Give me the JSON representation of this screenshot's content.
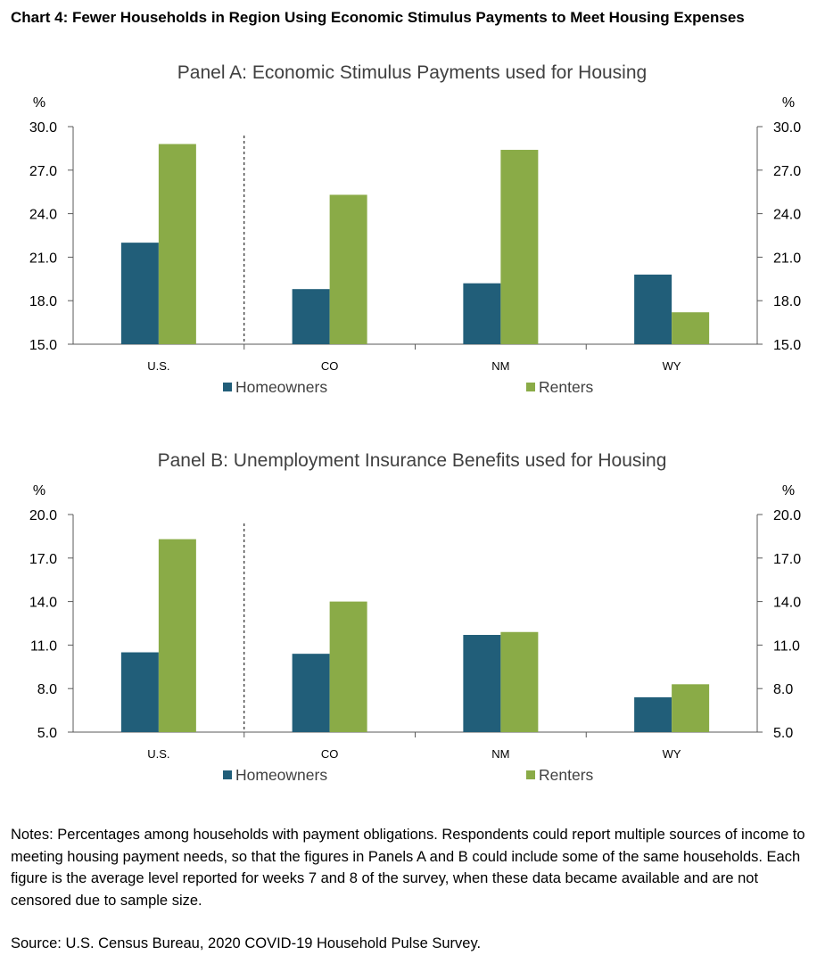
{
  "title": "Chart 4: Fewer Households in Region Using Economic Stimulus Payments to Meet Housing Expenses",
  "colors": {
    "homeowners": "#215e79",
    "renters": "#8aab47",
    "axis": "#595959"
  },
  "chart_data": [
    {
      "type": "bar",
      "title": "Panel A: Economic Stimulus Payments used for Housing",
      "y_unit_left": "%",
      "y_unit_right": "%",
      "categories": [
        "U.S.",
        "CO",
        "NM",
        "WY"
      ],
      "series": [
        {
          "name": "Homeowners",
          "values": [
            22.0,
            18.8,
            19.2,
            19.8
          ]
        },
        {
          "name": "Renters",
          "values": [
            28.8,
            25.3,
            28.4,
            17.2
          ]
        }
      ],
      "ylim": [
        15.0,
        30.0
      ],
      "yticks": [
        "30.0",
        "27.0",
        "24.0",
        "21.0",
        "18.0",
        "15.0"
      ],
      "legend": "bottom",
      "grid": false
    },
    {
      "type": "bar",
      "title": "Panel B: Unemployment Insurance Benefits used for Housing",
      "y_unit_left": "%",
      "y_unit_right": "%",
      "categories": [
        "U.S.",
        "CO",
        "NM",
        "WY"
      ],
      "series": [
        {
          "name": "Homeowners",
          "values": [
            10.5,
            10.4,
            11.7,
            7.4
          ]
        },
        {
          "name": "Renters",
          "values": [
            18.3,
            14.0,
            11.9,
            8.3
          ]
        }
      ],
      "ylim": [
        5.0,
        20.0
      ],
      "yticks": [
        "20.0",
        "17.0",
        "14.0",
        "11.0",
        "8.0",
        "5.0"
      ],
      "legend": "bottom",
      "grid": false
    }
  ],
  "notes": "Notes: Percentages among households with payment obligations. Respondents could report multiple sources of income to meeting housing payment needs, so that the figures in Panels A and B could include some of the same households. Each figure is the average level reported for weeks 7 and 8 of the survey, when these data became available and are not censored due to sample size.",
  "source": "Source: U.S. Census Bureau, 2020 COVID-19 Household Pulse Survey."
}
